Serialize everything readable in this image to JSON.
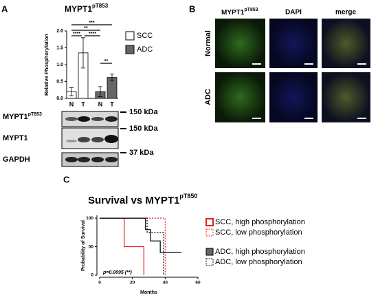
{
  "panels": {
    "a": "A",
    "b": "B",
    "c": "C"
  },
  "blot": {
    "rows": [
      {
        "name": "MYPT1",
        "superscript": "pT853",
        "marker": "150 kDa"
      },
      {
        "name": "MYPT1",
        "marker": "150 kDa"
      },
      {
        "name": "GAPDH",
        "marker": "37 kDa"
      }
    ]
  },
  "microscopy": {
    "columns": [
      {
        "name": "MYPT1",
        "superscript": "pT853"
      },
      {
        "name": "DAPI"
      },
      {
        "name": "merge"
      }
    ],
    "rows": [
      "Normal",
      "ADC"
    ]
  },
  "chart_data": [
    {
      "type": "bar",
      "title": "MYPT1",
      "title_superscript": "pT853",
      "y_label": "Relative Phosphorylation",
      "categories": [
        "N",
        "T",
        "N",
        "T"
      ],
      "series": [
        {
          "name": "SCC",
          "color": "#ffffff",
          "values": [
            0.2,
            1.35,
            null,
            null
          ],
          "errors": [
            0.12,
            0.45,
            null,
            null
          ]
        },
        {
          "name": "ADC",
          "color": "#666666",
          "values": [
            null,
            null,
            0.2,
            0.62
          ],
          "errors": [
            null,
            null,
            0.15,
            0.1
          ]
        }
      ],
      "ylim": [
        0,
        2.0
      ],
      "yticks": [
        {
          "value": 0,
          "label": "0.0"
        },
        {
          "value": 0.5,
          "label": "0.5"
        },
        {
          "value": 1,
          "label": "1.0"
        },
        {
          "value": 1.5,
          "label": "1.5"
        },
        {
          "value": 2,
          "label": "2.0"
        }
      ],
      "annotations": [
        "***",
        "**",
        "****",
        "****",
        "**"
      ]
    },
    {
      "type": "line",
      "title": "Survival vs MYPT1",
      "title_superscript": "pT850",
      "x_label": "Months",
      "y_label": "Probability of Survival",
      "xlim": [
        0,
        60
      ],
      "xticks": [
        0,
        20,
        40,
        60
      ],
      "ylim": [
        0,
        105
      ],
      "yticks": [
        0,
        50,
        100
      ],
      "series": [
        {
          "name": "SCC, high phosphorylation",
          "color": "#e02020",
          "dashed": false,
          "x": [
            0,
            15,
            15,
            27,
            27
          ],
          "values": [
            100,
            100,
            50,
            50,
            0
          ]
        },
        {
          "name": "SCC, low phosphorylation",
          "color": "#e02020",
          "dashed": true,
          "x": [
            0,
            40,
            40
          ],
          "values": [
            100,
            100,
            0
          ]
        },
        {
          "name": "ADC, high phosphorylation",
          "color": "#000000",
          "dashed": false,
          "x": [
            0,
            28,
            28,
            31,
            31,
            37,
            37,
            50
          ],
          "values": [
            100,
            100,
            80,
            80,
            60,
            60,
            40,
            40
          ]
        },
        {
          "name": "ADC, low phosphorylation",
          "color": "#000000",
          "dashed": true,
          "x": [
            0,
            29,
            29,
            39,
            39
          ],
          "values": [
            100,
            100,
            75,
            75,
            0
          ]
        }
      ],
      "annotation": "p=0.0095 (**)"
    }
  ]
}
